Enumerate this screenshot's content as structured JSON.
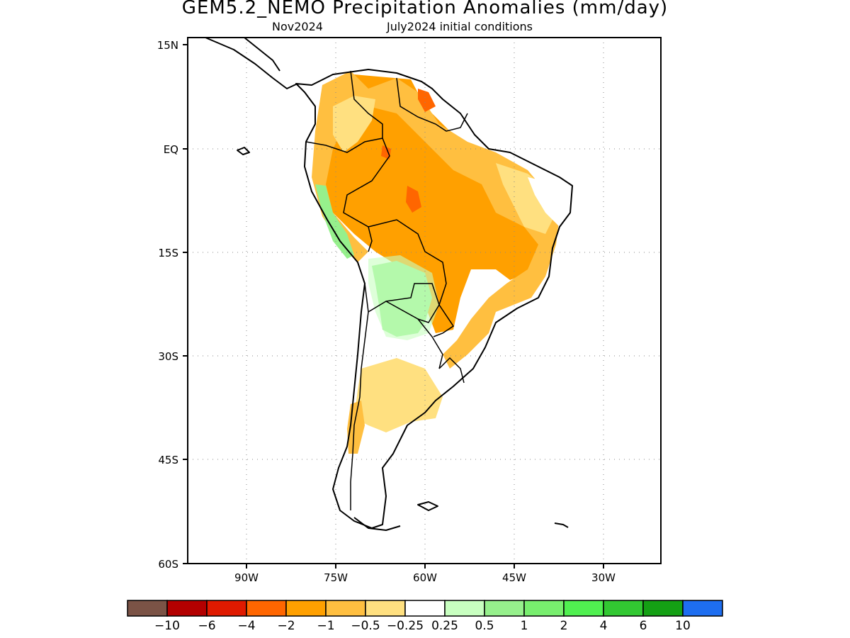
{
  "header": {
    "title": "GEM5.2_NEMO Precipitation Anomalies (mm/day)",
    "period": "Nov2024",
    "init": "July2024 initial conditions"
  },
  "axes": {
    "lat_labels": [
      "15N",
      "EQ",
      "15S",
      "30S",
      "45S",
      "60S"
    ],
    "lon_labels": [
      "90W",
      "75W",
      "60W",
      "45W",
      "30W"
    ]
  },
  "colorbar": {
    "colors": [
      "#7b5346",
      "#b30000",
      "#e01a00",
      "#ff6600",
      "#ffa000",
      "#ffbf40",
      "#ffe080",
      "#ffffff",
      "#c8ffc0",
      "#96f08c",
      "#78ee6e",
      "#50f050",
      "#32c832",
      "#14a014",
      "#1e6ef0"
    ],
    "labels": [
      "−10",
      "−6",
      "−4",
      "−2",
      "−1",
      "−0.5",
      "−0.25",
      "0.25",
      "0.5",
      "1",
      "2",
      "4",
      "6",
      "10"
    ]
  }
}
